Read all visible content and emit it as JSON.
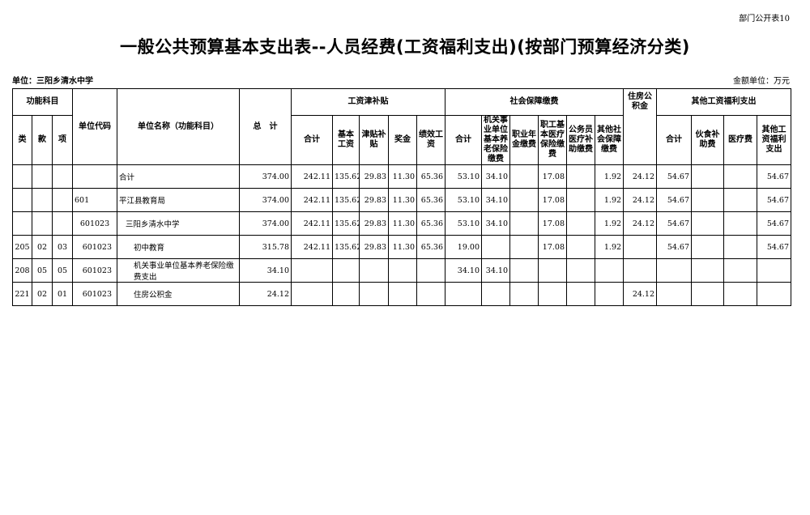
{
  "form_number": "部门公开表10",
  "title": "一般公共预算基本支出表--人员经费(工资福利支出)(按部门预算经济分类)",
  "unit": "单位：三阳乡清水中学",
  "amount_unit": "金额单位：万元",
  "headers": {
    "func_subject": "功能科目",
    "lei": "类",
    "kuan": "款",
    "xiang": "项",
    "unit_code": "单位代码",
    "unit_name": "单位名称（功能科目）",
    "total": "总　计",
    "wage_group": "工资津补贴",
    "wage_total": "合计",
    "basic_wage": "基本工资",
    "allowance": "津贴补贴",
    "bonus": "奖金",
    "performance": "绩效工资",
    "ss_group": "社会保障缴费",
    "ss_total": "合计",
    "pension": "机关事业单位基本养老保险缴费",
    "occupational": "职业年金缴费",
    "medical_ins": "职工基本医疗保险缴费",
    "civil_medical": "公务员医疗补助缴费",
    "other_ss": "其他社会保障缴费",
    "housing": "住房公积金",
    "other_group": "其他工资福利支出",
    "other_total": "合计",
    "meal": "伙食补助费",
    "medical_fee": "医疗费",
    "other_welfare": "其他工资福利支出"
  },
  "rows": [
    [
      "",
      "",
      "",
      "",
      "合计",
      "374.00",
      "242.11",
      "135.62",
      "29.83",
      "11.30",
      "65.36",
      "53.10",
      "34.10",
      "",
      "17.08",
      "",
      "1.92",
      "24.12",
      "54.67",
      "",
      "",
      "54.67"
    ],
    [
      "",
      "",
      "",
      "601",
      "平江县教育局",
      "374.00",
      "242.11",
      "135.62",
      "29.83",
      "11.30",
      "65.36",
      "53.10",
      "34.10",
      "",
      "17.08",
      "",
      "1.92",
      "24.12",
      "54.67",
      "",
      "",
      "54.67"
    ],
    [
      "",
      "",
      "",
      "601023",
      "三阳乡清水中学",
      "374.00",
      "242.11",
      "135.62",
      "29.83",
      "11.30",
      "65.36",
      "53.10",
      "34.10",
      "",
      "17.08",
      "",
      "1.92",
      "24.12",
      "54.67",
      "",
      "",
      "54.67"
    ],
    [
      "205",
      "02",
      "03",
      "601023",
      "初中教育",
      "315.78",
      "242.11",
      "135.62",
      "29.83",
      "11.30",
      "65.36",
      "19.00",
      "",
      "",
      "17.08",
      "",
      "1.92",
      "",
      "54.67",
      "",
      "",
      "54.67"
    ],
    [
      "208",
      "05",
      "05",
      "601023",
      "机关事业单位基本养老保险缴费支出",
      "34.10",
      "",
      "",
      "",
      "",
      "",
      "34.10",
      "34.10",
      "",
      "",
      "",
      "",
      "",
      "",
      "",
      "",
      ""
    ],
    [
      "221",
      "02",
      "01",
      "601023",
      "住房公积金",
      "24.12",
      "",
      "",
      "",
      "",
      "",
      "",
      "",
      "",
      "",
      "",
      "",
      "24.12",
      "",
      "",
      "",
      ""
    ]
  ]
}
